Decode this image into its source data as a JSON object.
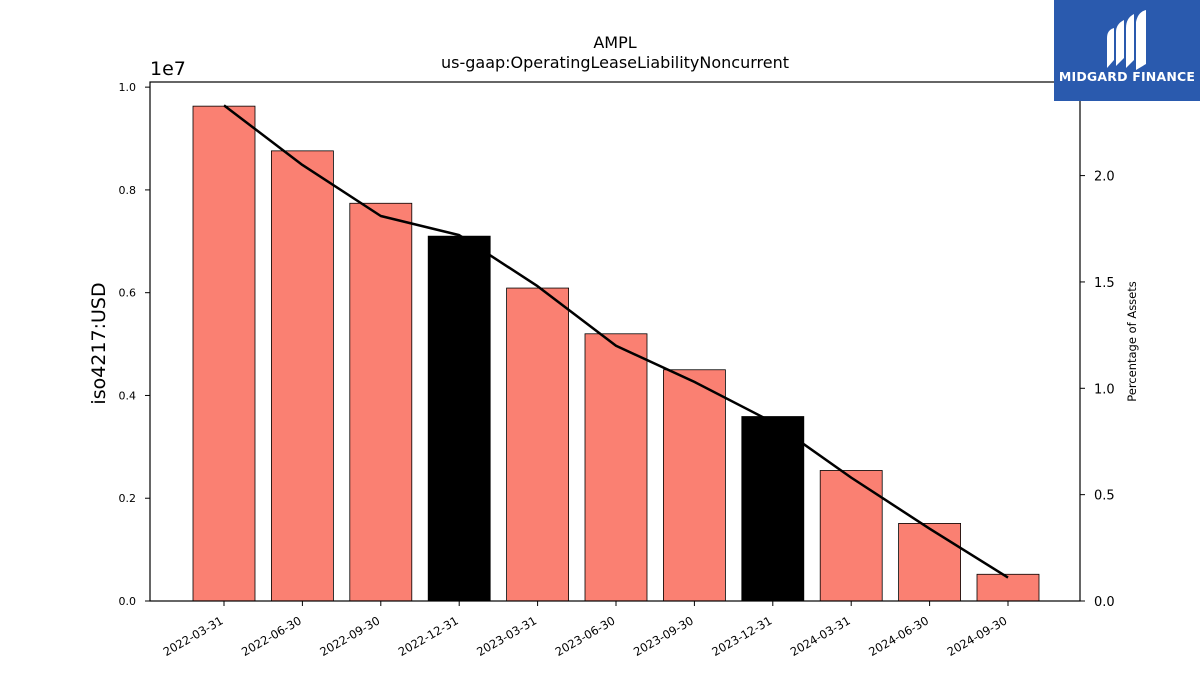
{
  "chart_data": {
    "type": "bar",
    "title": "AMPL",
    "subtitle": "us-gaap:OperatingLeaseLiabilityNoncurrent",
    "ylabel": "iso4217:USD",
    "y2label": "Percentage of Assets",
    "offset_label": "1e7",
    "categories": [
      "2022-03-31",
      "2022-06-30",
      "2022-09-30",
      "2022-12-31",
      "2023-03-31",
      "2023-06-30",
      "2023-09-30",
      "2023-12-31",
      "2024-03-31",
      "2024-06-30",
      "2024-09-30"
    ],
    "series": [
      {
        "values": [
          9630000,
          8760000,
          7740000,
          7100000,
          6090000,
          5200000,
          4500000,
          3590000,
          2540000,
          1510000,
          520000
        ],
        "colors": [
          "#fa8072",
          "#fa8072",
          "#fa8072",
          "#000000",
          "#fa8072",
          "#fa8072",
          "#fa8072",
          "#000000",
          "#fa8072",
          "#fa8072",
          "#fa8072"
        ]
      },
      {
        "type": "line",
        "axis": "right",
        "color": "#000000",
        "values": [
          2.33,
          2.05,
          1.81,
          1.72,
          1.48,
          1.2,
          1.03,
          0.84,
          0.58,
          0.34,
          0.11
        ]
      }
    ],
    "ylim": [
      0,
      10100000
    ],
    "y_ticks": [
      0,
      2000000,
      4000000,
      6000000,
      8000000,
      10000000
    ],
    "y_tick_labels": [
      "0.0",
      "0.2",
      "0.4",
      "0.6",
      "0.8",
      "1.0"
    ],
    "y2lim": [
      0,
      2.44
    ],
    "y2_ticks": [
      0,
      0.5,
      1.0,
      1.5,
      2.0
    ],
    "y2_tick_labels": [
      "0.0",
      "0.5",
      "1.0",
      "1.5",
      "2.0"
    ],
    "grid": false
  },
  "logo": {
    "text": "MIDGARD FINANCE",
    "color": "#2a5aae"
  }
}
